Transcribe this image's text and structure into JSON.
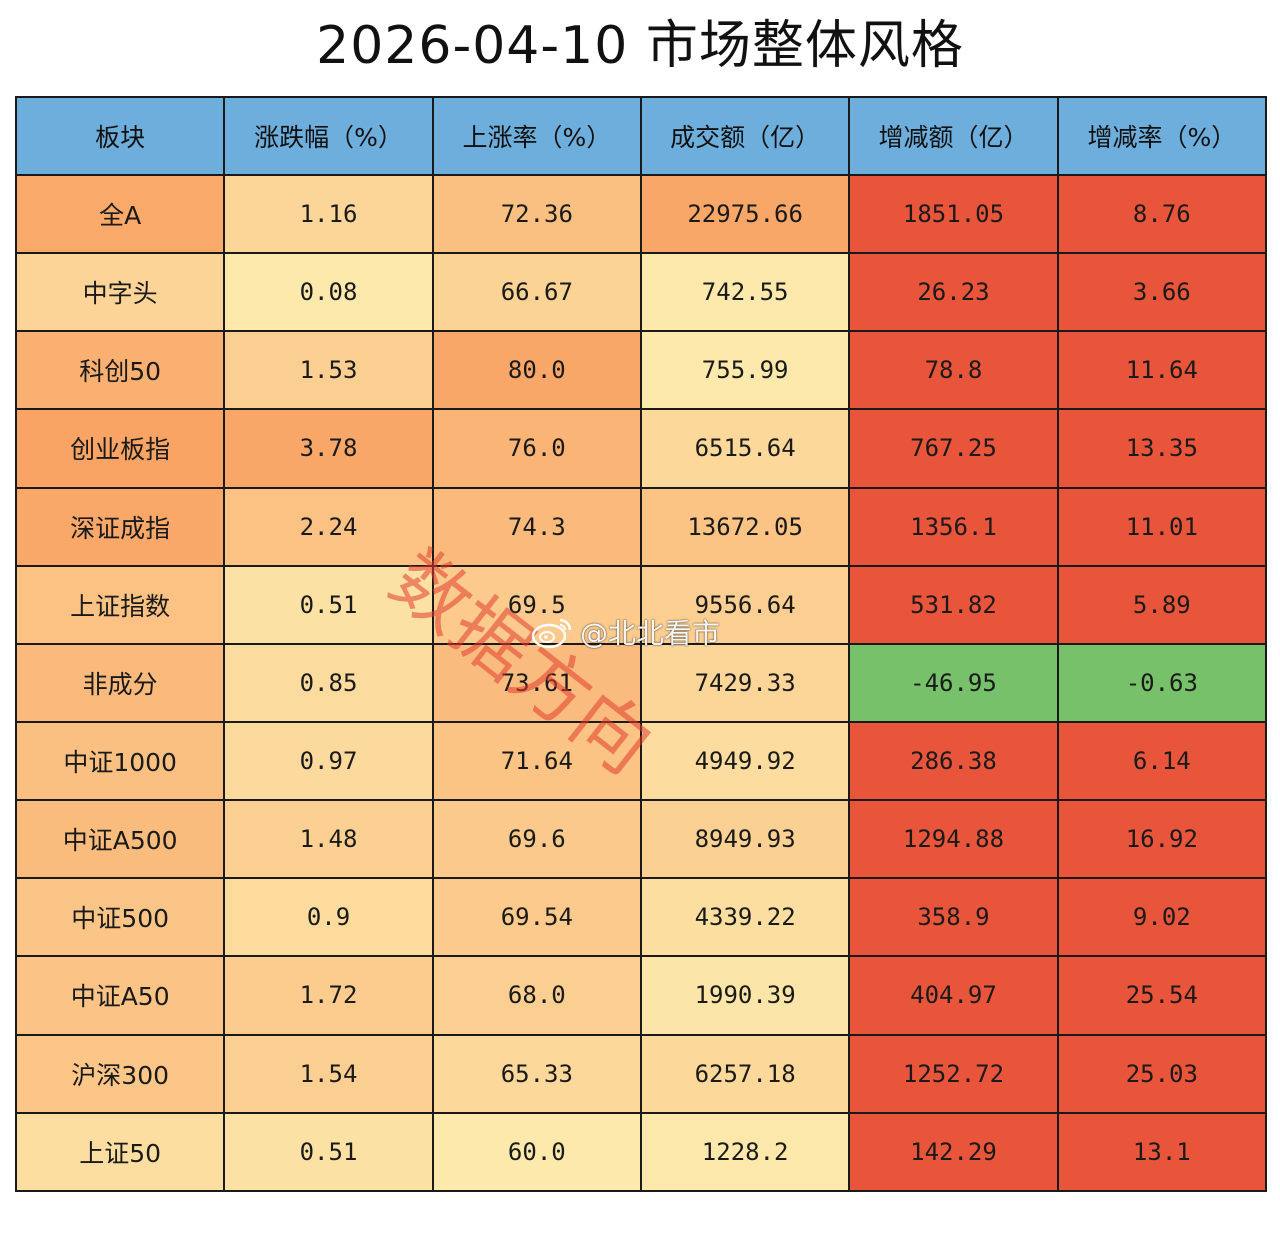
{
  "title": "2026-04-10 市场整体风格",
  "colors": {
    "header": "#6eaedc",
    "increase_red": "#e8553b",
    "decrease_green": "#76c16a",
    "heat_low": "#fdf1b4",
    "heat_high": "#f9a364"
  },
  "chart_data": {
    "type": "table",
    "title": "2026-04-10 市场整体风格",
    "columns": [
      "板块",
      "涨跌幅（%）",
      "上涨率（%）",
      "成交额（亿）",
      "增减额（亿）",
      "增减率（%）"
    ],
    "rows": [
      [
        "全A",
        "1.16",
        "72.36",
        "22975.66",
        "1851.05",
        "8.76"
      ],
      [
        "中字头",
        "0.08",
        "66.67",
        "742.55",
        "26.23",
        "3.66"
      ],
      [
        "科创50",
        "1.53",
        "80.0",
        "755.99",
        "78.8",
        "11.64"
      ],
      [
        "创业板指",
        "3.78",
        "76.0",
        "6515.64",
        "767.25",
        "13.35"
      ],
      [
        "深证成指",
        "2.24",
        "74.3",
        "13672.05",
        "1356.1",
        "11.01"
      ],
      [
        "上证指数",
        "0.51",
        "69.5",
        "9556.64",
        "531.82",
        "5.89"
      ],
      [
        "非成分",
        "0.85",
        "73.61",
        "7429.33",
        "-46.95",
        "-0.63"
      ],
      [
        "中证1000",
        "0.97",
        "71.64",
        "4949.92",
        "286.38",
        "6.14"
      ],
      [
        "中证A500",
        "1.48",
        "69.6",
        "8949.93",
        "1294.88",
        "16.92"
      ],
      [
        "中证500",
        "0.9",
        "69.54",
        "4339.22",
        "358.9",
        "9.02"
      ],
      [
        "中证A50",
        "1.72",
        "68.0",
        "1990.39",
        "404.97",
        "25.54"
      ],
      [
        "沪深300",
        "1.54",
        "65.33",
        "6257.18",
        "1252.72",
        "25.03"
      ],
      [
        "上证50",
        "0.51",
        "60.0",
        "1228.2",
        "142.29",
        "13.1"
      ]
    ]
  },
  "watermark": {
    "text": "数据方向",
    "weibo_handle": "@北北看市",
    "weibo_icon": "weibo-icon"
  }
}
